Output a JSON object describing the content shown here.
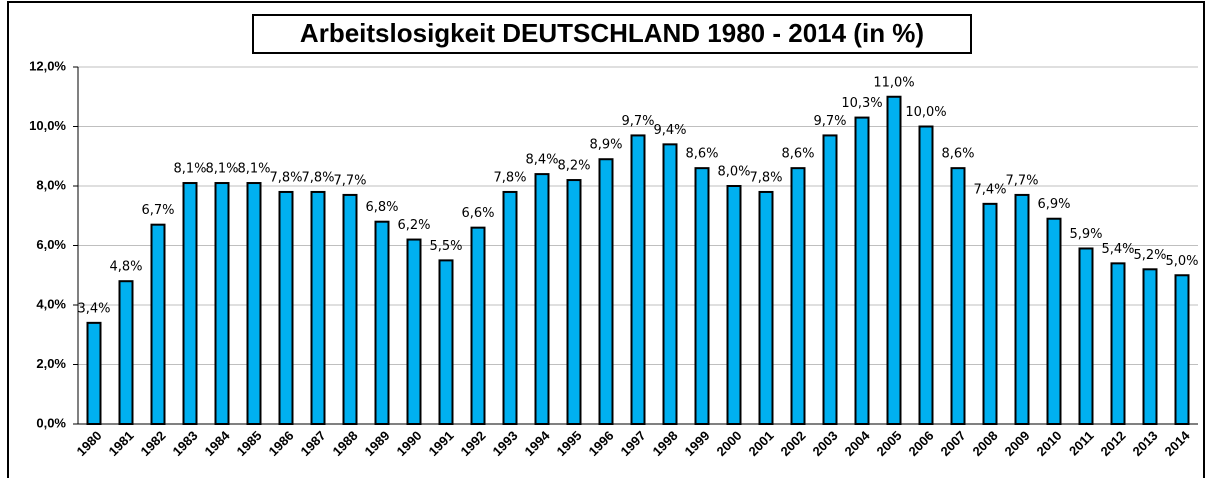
{
  "chart_data": {
    "type": "bar",
    "title": "Arbeitslosigkeit DEUTSCHLAND 1980 - 2014 (in %)",
    "categories": [
      "1980",
      "1981",
      "1982",
      "1983",
      "1984",
      "1985",
      "1986",
      "1987",
      "1988",
      "1989",
      "1990",
      "1991",
      "1992",
      "1993",
      "1994",
      "1995",
      "1996",
      "1997",
      "1998",
      "1999",
      "2000",
      "2001",
      "2002",
      "2003",
      "2004",
      "2005",
      "2006",
      "2007",
      "2008",
      "2009",
      "2010",
      "2011",
      "2012",
      "2013",
      "2014"
    ],
    "values": [
      3.4,
      4.8,
      6.7,
      8.1,
      8.1,
      8.1,
      7.8,
      7.8,
      7.7,
      6.8,
      6.2,
      5.5,
      6.6,
      7.8,
      8.4,
      8.2,
      8.9,
      9.7,
      9.4,
      8.6,
      8.0,
      7.8,
      8.6,
      9.7,
      10.3,
      11.0,
      10.0,
      8.6,
      7.4,
      7.7,
      6.9,
      5.9,
      5.4,
      5.2,
      5.0
    ],
    "value_labels": [
      "3,4%",
      "4,8%",
      "6,7%",
      "8,1%",
      "8,1%",
      "8,1%",
      "7,8%",
      "7,8%",
      "7,7%",
      "6,8%",
      "6,2%",
      "5,5%",
      "6,6%",
      "7,8%",
      "8,4%",
      "8,2%",
      "8,9%",
      "9,7%",
      "9,4%",
      "8,6%",
      "8,0%",
      "7,8%",
      "8,6%",
      "9,7%",
      "10,3%",
      "11,0%",
      "10,0%",
      "8,6%",
      "7,4%",
      "7,7%",
      "6,9%",
      "5,9%",
      "5,4%",
      "5,2%",
      "5,0%"
    ],
    "color": "#00b0f0",
    "ylim": [
      0,
      12
    ],
    "yticks": [
      {
        "value": 0,
        "label": "0,0%"
      },
      {
        "value": 2,
        "label": "2,0%"
      },
      {
        "value": 4,
        "label": "4,0%"
      },
      {
        "value": 6,
        "label": "6,0%"
      },
      {
        "value": 8,
        "label": "8,0%"
      },
      {
        "value": 10,
        "label": "10,0%"
      },
      {
        "value": 12,
        "label": "12,0%"
      }
    ],
    "grid": true
  }
}
